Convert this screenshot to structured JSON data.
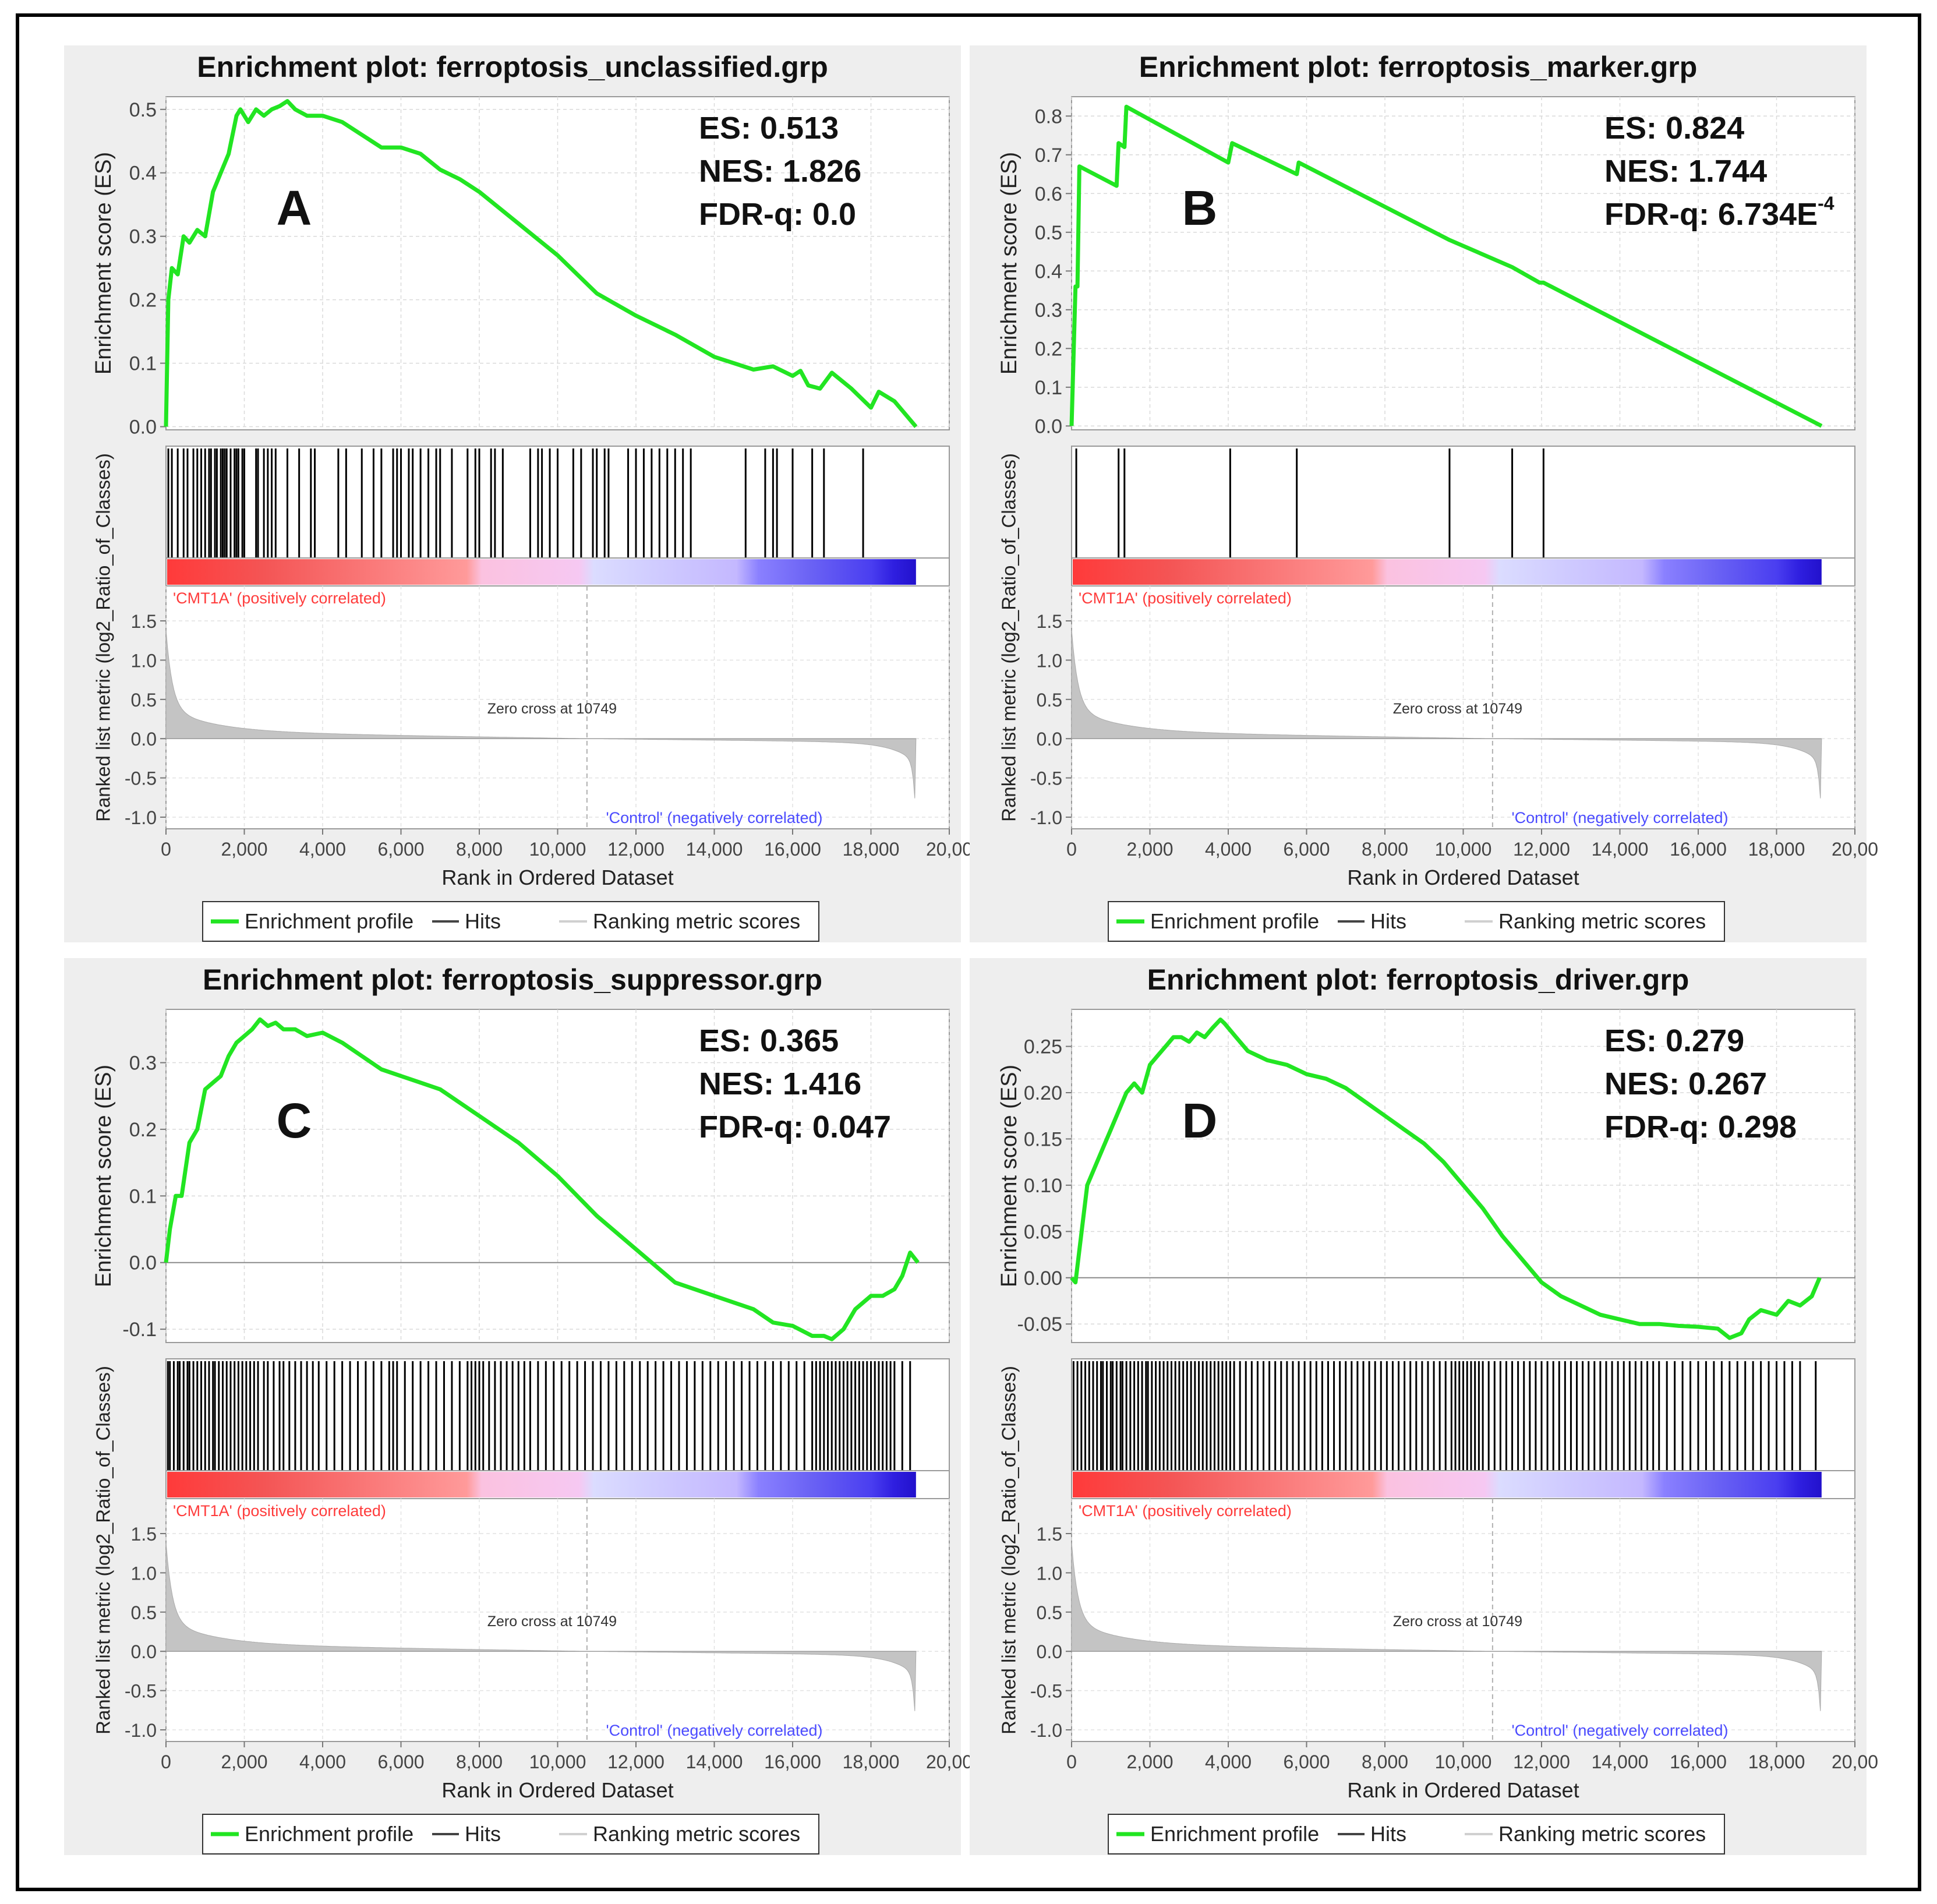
{
  "figure": {
    "panels": [
      {
        "title": "Enrichment plot: ferroptosis_unclassified.grp",
        "letter": "A",
        "stats": {
          "es": "ES: 0.513",
          "nes": "NES: 1.826",
          "fdr": "FDR-q: 0.0",
          "fdr_exp": ""
        },
        "es_ylabel": "Enrichment score (ES)",
        "metric_ylabel": "Ranked list metric (log2_Ratio_of_Classes)",
        "xlabel": "Rank in Ordered Dataset",
        "es_ticks": [
          "0.0",
          "0.1",
          "0.2",
          "0.3",
          "0.4",
          "0.5"
        ],
        "metric_ticks": [
          "1.5",
          "1.0",
          "0.5",
          "0.0",
          "-0.5",
          "-1.0"
        ],
        "x_ticks": [
          "0",
          "2,000",
          "4,000",
          "6,000",
          "8,000",
          "10,000",
          "12,000",
          "14,000",
          "16,000",
          "18,000",
          "20,00"
        ],
        "pos_label": "'CMT1A' (positively correlated)",
        "neg_label": "'Control' (negatively correlated)",
        "zero_cross": "Zero cross at 10749",
        "legend": {
          "profile": "Enrichment profile",
          "hits": "Hits",
          "metric": "Ranking metric scores"
        }
      },
      {
        "title": "Enrichment plot: ferroptosis_marker.grp",
        "letter": "B",
        "stats": {
          "es": "ES: 0.824",
          "nes": "NES: 1.744",
          "fdr": "FDR-q: 6.734E",
          "fdr_exp": "-4"
        },
        "es_ylabel": "Enrichment score (ES)",
        "metric_ylabel": "Ranked list metric (log2_Ratio_of_Classes)",
        "xlabel": "Rank in Ordered Dataset",
        "es_ticks": [
          "0.0",
          "0.1",
          "0.2",
          "0.3",
          "0.4",
          "0.5",
          "0.6",
          "0.7",
          "0.8"
        ],
        "metric_ticks": [
          "1.5",
          "1.0",
          "0.5",
          "0.0",
          "-0.5",
          "-1.0"
        ],
        "x_ticks": [
          "0",
          "2,000",
          "4,000",
          "6,000",
          "8,000",
          "10,000",
          "12,000",
          "14,000",
          "16,000",
          "18,000",
          "20,00"
        ],
        "pos_label": "'CMT1A' (positively correlated)",
        "neg_label": "'Control' (negatively correlated)",
        "zero_cross": "Zero cross at 10749",
        "legend": {
          "profile": "Enrichment profile",
          "hits": "Hits",
          "metric": "Ranking metric scores"
        }
      },
      {
        "title": "Enrichment plot: ferroptosis_suppressor.grp",
        "letter": "C",
        "stats": {
          "es": "ES: 0.365",
          "nes": "NES: 1.416",
          "fdr": "FDR-q: 0.047",
          "fdr_exp": ""
        },
        "es_ylabel": "Enrichment score (ES)",
        "metric_ylabel": "Ranked list metric (log2_Ratio_of_Classes)",
        "xlabel": "Rank in Ordered Dataset",
        "es_ticks": [
          "-0.1",
          "0.0",
          "0.1",
          "0.2",
          "0.3"
        ],
        "metric_ticks": [
          "1.5",
          "1.0",
          "0.5",
          "0.0",
          "-0.5",
          "-1.0"
        ],
        "x_ticks": [
          "0",
          "2,000",
          "4,000",
          "6,000",
          "8,000",
          "10,000",
          "12,000",
          "14,000",
          "16,000",
          "18,000",
          "20,00"
        ],
        "pos_label": "'CMT1A' (positively correlated)",
        "neg_label": "'Control' (negatively correlated)",
        "zero_cross": "Zero cross at 10749",
        "legend": {
          "profile": "Enrichment profile",
          "hits": "Hits",
          "metric": "Ranking metric scores"
        }
      },
      {
        "title": "Enrichment plot: ferroptosis_driver.grp",
        "letter": "D",
        "stats": {
          "es": "ES: 0.279",
          "nes": "NES: 0.267",
          "fdr": "FDR-q: 0.298",
          "fdr_exp": ""
        },
        "es_ylabel": "Enrichment score (ES)",
        "metric_ylabel": "Ranked list metric (log2_Ratio_of_Classes)",
        "xlabel": "Rank in Ordered Dataset",
        "es_ticks": [
          "-0.05",
          "0.00",
          "0.05",
          "0.10",
          "0.15",
          "0.20",
          "0.25"
        ],
        "metric_ticks": [
          "1.5",
          "1.0",
          "0.5",
          "0.0",
          "-0.5",
          "-1.0"
        ],
        "x_ticks": [
          "0",
          "2,000",
          "4,000",
          "6,000",
          "8,000",
          "10,000",
          "12,000",
          "14,000",
          "16,000",
          "18,000",
          "20,00"
        ],
        "pos_label": "'CMT1A' (positively correlated)",
        "neg_label": "'Control' (negatively correlated)",
        "zero_cross": "Zero cross at 10749",
        "legend": {
          "profile": "Enrichment profile",
          "hits": "Hits",
          "metric": "Ranking metric scores"
        }
      }
    ]
  },
  "colors": {
    "profile": "#22e522",
    "hits": "#000000",
    "metric_fill": "#c4c4c4",
    "pos_text": "#ff3b3b",
    "neg_text": "#4b4bff",
    "panel_bg": "#eeeeee"
  },
  "chart_data": [
    {
      "type": "line",
      "title": "Enrichment plot: ferroptosis_unclassified.grp",
      "xlabel": "Rank in Ordered Dataset",
      "ylabel": "Enrichment score (ES)",
      "xlim": [
        0,
        20000
      ],
      "ylim": [
        -0.005,
        0.52
      ],
      "x": [
        0,
        60,
        150,
        300,
        450,
        600,
        800,
        1000,
        1200,
        1400,
        1600,
        1800,
        1900,
        2100,
        2300,
        2500,
        2700,
        2900,
        3100,
        3300,
        3600,
        4000,
        4500,
        5000,
        5500,
        6000,
        6500,
        7000,
        7500,
        8000,
        9000,
        10000,
        11000,
        12000,
        13000,
        14000,
        15000,
        15500,
        16000,
        16200,
        16400,
        16700,
        17000,
        17500,
        18000,
        18200,
        18600,
        19150
      ],
      "y": [
        0.0,
        0.2,
        0.25,
        0.24,
        0.3,
        0.29,
        0.31,
        0.3,
        0.37,
        0.4,
        0.43,
        0.49,
        0.5,
        0.48,
        0.5,
        0.49,
        0.5,
        0.505,
        0.513,
        0.5,
        0.49,
        0.49,
        0.48,
        0.46,
        0.44,
        0.44,
        0.43,
        0.405,
        0.39,
        0.37,
        0.32,
        0.27,
        0.21,
        0.175,
        0.145,
        0.11,
        0.09,
        0.095,
        0.08,
        0.088,
        0.065,
        0.06,
        0.085,
        0.06,
        0.03,
        0.055,
        0.04,
        0.0
      ],
      "hits": [
        60,
        150,
        300,
        450,
        550,
        700,
        800,
        900,
        1000,
        1100,
        1150,
        1250,
        1300,
        1400,
        1450,
        1500,
        1550,
        1650,
        1750,
        1800,
        1850,
        1950,
        2000,
        2300,
        2350,
        2500,
        2600,
        2700,
        2800,
        3100,
        3400,
        3700,
        3800,
        4400,
        4600,
        5000,
        5300,
        5500,
        5800,
        5900,
        6000,
        6200,
        6300,
        6500,
        6700,
        6900,
        7000,
        7300,
        7700,
        7900,
        8000,
        8300,
        8400,
        8600,
        9300,
        9500,
        9600,
        9800,
        10000,
        10400,
        10600,
        10900,
        11000,
        11200,
        11300,
        11800,
        12000,
        12200,
        12400,
        12600,
        12800,
        13000,
        13200,
        13400,
        14800,
        15300,
        15500,
        15600,
        16000,
        16500,
        16800,
        17800
      ]
    },
    {
      "type": "line",
      "title": "Enrichment plot: ferroptosis_marker.grp",
      "xlabel": "Rank in Ordered Dataset",
      "ylabel": "Enrichment score (ES)",
      "xlim": [
        0,
        20000
      ],
      "ylim": [
        -0.01,
        0.85
      ],
      "x": [
        0,
        100,
        150,
        200,
        1150,
        1200,
        1350,
        1400,
        4000,
        4100,
        5750,
        5800,
        9650,
        11250,
        11950,
        12050,
        19150
      ],
      "y": [
        0.0,
        0.36,
        0.36,
        0.67,
        0.62,
        0.73,
        0.72,
        0.824,
        0.68,
        0.73,
        0.65,
        0.68,
        0.48,
        0.41,
        0.37,
        0.37,
        0.0
      ],
      "hits": [
        120,
        1200,
        1350,
        4050,
        5750,
        9650,
        11250,
        12050
      ]
    },
    {
      "type": "line",
      "title": "Enrichment plot: ferroptosis_suppressor.grp",
      "xlabel": "Rank in Ordered Dataset",
      "ylabel": "Enrichment score (ES)",
      "xlim": [
        0,
        20000
      ],
      "ylim": [
        -0.12,
        0.38
      ],
      "x": [
        0,
        100,
        250,
        400,
        600,
        800,
        1000,
        1200,
        1400,
        1600,
        1800,
        2000,
        2200,
        2400,
        2600,
        2800,
        3000,
        3300,
        3600,
        4000,
        4500,
        5000,
        5500,
        6000,
        6500,
        7000,
        7500,
        8000,
        9000,
        10000,
        11000,
        12000,
        13000,
        14000,
        15000,
        15500,
        16000,
        16500,
        16800,
        17000,
        17300,
        17600,
        18000,
        18300,
        18600,
        18800,
        19000,
        19200
      ],
      "y": [
        0.0,
        0.05,
        0.1,
        0.1,
        0.18,
        0.2,
        0.26,
        0.27,
        0.28,
        0.31,
        0.33,
        0.34,
        0.35,
        0.365,
        0.355,
        0.36,
        0.35,
        0.35,
        0.34,
        0.345,
        0.33,
        0.31,
        0.29,
        0.28,
        0.27,
        0.26,
        0.24,
        0.22,
        0.18,
        0.13,
        0.07,
        0.02,
        -0.03,
        -0.05,
        -0.07,
        -0.09,
        -0.095,
        -0.11,
        -0.11,
        -0.115,
        -0.1,
        -0.07,
        -0.05,
        -0.05,
        -0.04,
        -0.02,
        0.015,
        0.0
      ],
      "hits": [
        50,
        100,
        200,
        300,
        350,
        450,
        550,
        600,
        700,
        800,
        900,
        1000,
        1100,
        1200,
        1250,
        1350,
        1450,
        1550,
        1650,
        1750,
        1850,
        1950,
        2050,
        2150,
        2250,
        2350,
        2500,
        2600,
        2750,
        2900,
        3000,
        3150,
        3300,
        3450,
        3600,
        3750,
        3900,
        4100,
        4300,
        4500,
        4700,
        4900,
        5100,
        5300,
        5500,
        5700,
        5800,
        5900,
        6100,
        6300,
        6500,
        6700,
        6900,
        7100,
        7300,
        7500,
        7700,
        7800,
        7900,
        8000,
        8100,
        8250,
        8400,
        8550,
        8700,
        8850,
        9000,
        9150,
        9300,
        9500,
        9700,
        9900,
        10100,
        10300,
        10500,
        10700,
        10900,
        11100,
        11300,
        11500,
        11700,
        11900,
        12100,
        12300,
        12500,
        12700,
        12900,
        13100,
        13300,
        13500,
        13700,
        13900,
        14100,
        14300,
        14500,
        14700,
        14900,
        15100,
        15300,
        15500,
        15700,
        15900,
        16100,
        16300,
        16500,
        16600,
        16700,
        16800,
        16900,
        17000,
        17100,
        17200,
        17300,
        17400,
        17500,
        17600,
        17700,
        17800,
        17900,
        18000,
        18100,
        18200,
        18300,
        18400,
        18500,
        18600,
        18800,
        19000
      ]
    },
    {
      "type": "line",
      "title": "Enrichment plot: ferroptosis_driver.grp",
      "xlabel": "Rank in Ordered Dataset",
      "ylabel": "Enrichment score (ES)",
      "xlim": [
        0,
        20000
      ],
      "ylim": [
        -0.07,
        0.29
      ],
      "x": [
        0,
        100,
        200,
        400,
        600,
        800,
        1000,
        1200,
        1400,
        1600,
        1800,
        2000,
        2200,
        2400,
        2600,
        2800,
        3000,
        3200,
        3400,
        3600,
        3800,
        3900,
        4000,
        4200,
        4500,
        5000,
        5500,
        6000,
        6500,
        7000,
        7500,
        8000,
        8500,
        9000,
        9500,
        10000,
        10500,
        11000,
        11500,
        12000,
        12500,
        13000,
        13500,
        14000,
        14500,
        15000,
        15500,
        16000,
        16500,
        16800,
        17100,
        17300,
        17600,
        18000,
        18300,
        18600,
        18900,
        19100
      ],
      "y": [
        0.0,
        -0.005,
        0.03,
        0.1,
        0.12,
        0.14,
        0.16,
        0.18,
        0.2,
        0.21,
        0.2,
        0.23,
        0.24,
        0.25,
        0.26,
        0.26,
        0.255,
        0.265,
        0.26,
        0.27,
        0.279,
        0.275,
        0.27,
        0.26,
        0.245,
        0.235,
        0.23,
        0.22,
        0.215,
        0.205,
        0.19,
        0.175,
        0.16,
        0.145,
        0.125,
        0.1,
        0.075,
        0.045,
        0.02,
        -0.005,
        -0.02,
        -0.03,
        -0.04,
        -0.045,
        -0.05,
        -0.05,
        -0.052,
        -0.053,
        -0.055,
        -0.065,
        -0.06,
        -0.045,
        -0.035,
        -0.04,
        -0.025,
        -0.03,
        -0.02,
        0.0
      ],
      "hits": [
        50,
        150,
        250,
        350,
        450,
        550,
        650,
        750,
        800,
        900,
        1000,
        1050,
        1150,
        1250,
        1300,
        1400,
        1500,
        1600,
        1700,
        1800,
        1900,
        1950,
        2050,
        2150,
        2250,
        2350,
        2450,
        2550,
        2650,
        2750,
        2850,
        2950,
        3050,
        3150,
        3250,
        3350,
        3450,
        3550,
        3650,
        3750,
        3850,
        3950,
        4050,
        4150,
        4300,
        4450,
        4600,
        4750,
        4900,
        5050,
        5200,
        5350,
        5500,
        5650,
        5800,
        5950,
        6100,
        6250,
        6400,
        6550,
        6700,
        6850,
        7000,
        7150,
        7300,
        7450,
        7600,
        7750,
        7900,
        8050,
        8200,
        8350,
        8500,
        8650,
        8800,
        8950,
        9100,
        9250,
        9400,
        9550,
        9700,
        9800,
        9900,
        10000,
        10100,
        10200,
        10300,
        10400,
        10500,
        10650,
        10800,
        10950,
        11100,
        11250,
        11400,
        11550,
        11700,
        11850,
        12000,
        12150,
        12300,
        12450,
        12600,
        12750,
        12900,
        13050,
        13200,
        13350,
        13500,
        13650,
        13800,
        13950,
        14100,
        14250,
        14400,
        14550,
        14700,
        14850,
        15000,
        15200,
        15400,
        15600,
        15800,
        16000,
        16200,
        16400,
        16600,
        16800,
        17000,
        17200,
        17400,
        17600,
        17800,
        18000,
        18200,
        18400,
        18600,
        19000
      ]
    }
  ]
}
